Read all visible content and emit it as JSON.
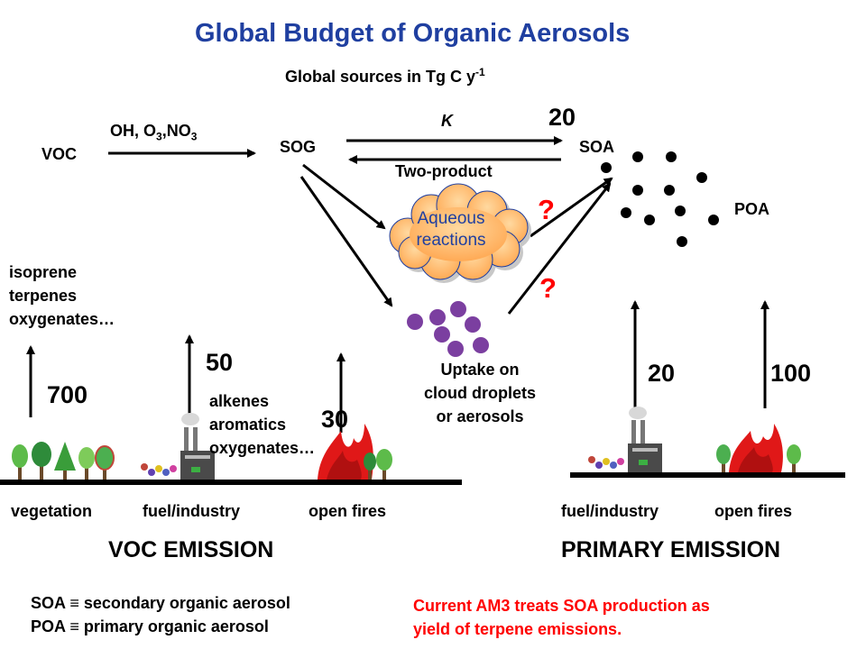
{
  "title": "Global Budget of Organic Aerosols",
  "subtitle_main": "Global sources in Tg C y",
  "subtitle_exp": "-1",
  "nodes": {
    "voc": "VOC",
    "oxidants_a": "OH, O",
    "oxidants_b": "3",
    "oxidants_c": ",NO",
    "oxidants_d": "3",
    "sog": "SOG",
    "k": "K",
    "soa_value": "20",
    "soa": "SOA",
    "two_product": "Two-product",
    "aqueous": "Aqueous\nreactions",
    "poa": "POA",
    "uptake": "Uptake on\ncloud droplets\nor aerosols",
    "question": "?"
  },
  "voc_sources": {
    "bio_species": "isoprene\nterpenes\noxygenates…",
    "bio_value": "700",
    "anthro_value": "50",
    "anthro_species": "alkenes\naromatics\noxygenates…",
    "fire_value": "30"
  },
  "primary_sources": {
    "industry_value": "20",
    "fire_value": "100"
  },
  "ground_labels": {
    "vegetation": "vegetation",
    "fuel_industry_1": "fuel/industry",
    "open_fires_1": "open fires",
    "fuel_industry_2": "fuel/industry",
    "open_fires_2": "open fires"
  },
  "section_titles": {
    "voc_emission": "VOC EMISSION",
    "primary_emission": "PRIMARY EMISSION"
  },
  "legend": {
    "soa_def": "SOA ≡ secondary organic aerosol",
    "poa_def": "POA ≡ primary organic aerosol"
  },
  "note": "Current AM3 treats SOA production as\nyield of terpene emissions.",
  "colors": {
    "title": "#1f3fa0",
    "note": "#ff0000",
    "cloud": "#ffb870",
    "droplets": "#7b3fa0",
    "fire": "#e01818",
    "tree": "#4caf50"
  }
}
